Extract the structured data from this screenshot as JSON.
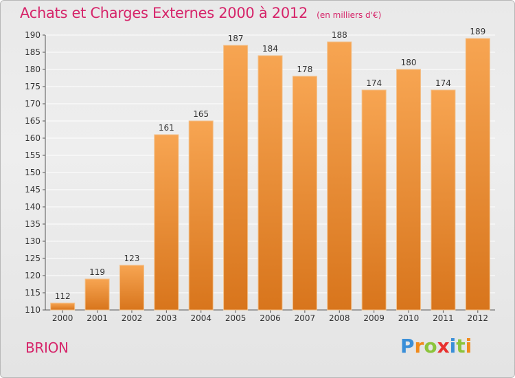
{
  "title": "Achats et Charges Externes 2000 à 2012",
  "subtitle": "(en milliers d'€)",
  "commune": "BRION",
  "logo": {
    "text": "Proxiti",
    "letters": [
      {
        "ch": "P",
        "color": "#3a8fd8"
      },
      {
        "ch": "r",
        "color": "#f08a1c"
      },
      {
        "ch": "o",
        "color": "#8cc43c"
      },
      {
        "ch": "x",
        "color": "#e8312f"
      },
      {
        "ch": "i",
        "color": "#3a8fd8"
      },
      {
        "ch": "t",
        "color": "#8cc43c"
      },
      {
        "ch": "i",
        "color": "#f08a1c"
      }
    ]
  },
  "colors": {
    "bar_top": "#f7a552",
    "bar_bottom": "#d8751c",
    "title": "#d6256a",
    "grid": "#ffffff"
  },
  "chart_data": {
    "type": "bar",
    "title": "Achats et Charges Externes 2000 à 2012",
    "subtitle": "(en milliers d'€)",
    "categories": [
      "2000",
      "2001",
      "2002",
      "2003",
      "2004",
      "2005",
      "2006",
      "2007",
      "2008",
      "2009",
      "2010",
      "2011",
      "2012"
    ],
    "values": [
      112,
      119,
      123,
      161,
      165,
      187,
      184,
      178,
      188,
      174,
      180,
      174,
      189
    ],
    "ylim": [
      110,
      190
    ],
    "yticks": [
      110,
      115,
      120,
      125,
      130,
      135,
      140,
      145,
      150,
      155,
      160,
      165,
      170,
      175,
      180,
      185,
      190
    ],
    "grid": true
  }
}
